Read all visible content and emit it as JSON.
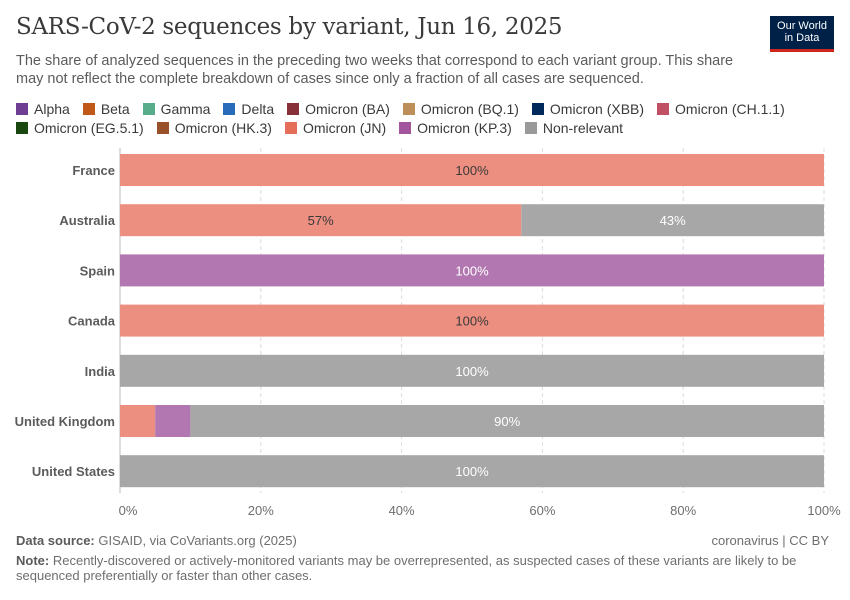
{
  "title": "SARS-CoV-2 sequences by variant, Jun 16, 2025",
  "subtitle": "The share of analyzed sequences in the preceding two weeks that correspond to each variant group. This share may not reflect the complete breakdown of cases since only a fraction of all cases are sequenced.",
  "logo": {
    "line1": "Our World",
    "line2": "in Data"
  },
  "footer": {
    "source_label": "Data source:",
    "source": "GISAID, via CoVariants.org (2025)",
    "note_label": "Note:",
    "note": "Recently-discovered or actively-monitored variants may be overrepresented, as suspected cases of these variants are likely to be sequenced preferentially or faster than other cases.",
    "license": "coronavirus | CC BY"
  },
  "chart_data": {
    "type": "bar",
    "orientation": "horizontal",
    "stacked": true,
    "xlim": [
      0,
      100
    ],
    "x_ticks": [
      "0%",
      "20%",
      "40%",
      "60%",
      "80%",
      "100%"
    ],
    "legend": [
      {
        "name": "Alpha",
        "color": "#6d3e91"
      },
      {
        "name": "Beta",
        "color": "#c05917"
      },
      {
        "name": "Gamma",
        "color": "#58ac8c"
      },
      {
        "name": "Delta",
        "color": "#286bbb"
      },
      {
        "name": "Omicron (BA)",
        "color": "#883039"
      },
      {
        "name": "Omicron (BQ.1)",
        "color": "#bc8e5a"
      },
      {
        "name": "Omicron (XBB)",
        "color": "#00295b"
      },
      {
        "name": "Omicron (CH.1.1)",
        "color": "#c15065"
      },
      {
        "name": "Omicron (EG.5.1)",
        "color": "#18470f"
      },
      {
        "name": "Omicron (HK.3)",
        "color": "#9a5129"
      },
      {
        "name": "Omicron (JN)",
        "color": "#e56e5a"
      },
      {
        "name": "Omicron (KP.3)",
        "color": "#a2559c"
      },
      {
        "name": "Non-relevant",
        "color": "#999999"
      }
    ],
    "segment_colors": {
      "Omicron (JN)": "#ec8f80",
      "Omicron (KP.3)": "#b277b0",
      "Non-relevant": "#a7a7a7"
    },
    "categories": [
      "France",
      "Australia",
      "Spain",
      "Canada",
      "India",
      "United Kingdom",
      "United States"
    ],
    "rows": [
      {
        "country": "France",
        "segments": [
          {
            "series": "Omicron (JN)",
            "value": 100,
            "label": "100%",
            "label_color": "#3a3a3a"
          }
        ]
      },
      {
        "country": "Australia",
        "segments": [
          {
            "series": "Omicron (JN)",
            "value": 57,
            "label": "57%",
            "label_color": "#3a3a3a"
          },
          {
            "series": "Non-relevant",
            "value": 43,
            "label": "43%",
            "label_color": "#ffffff"
          }
        ]
      },
      {
        "country": "Spain",
        "segments": [
          {
            "series": "Omicron (KP.3)",
            "value": 100,
            "label": "100%",
            "label_color": "#ffffff"
          }
        ]
      },
      {
        "country": "Canada",
        "segments": [
          {
            "series": "Omicron (JN)",
            "value": 100,
            "label": "100%",
            "label_color": "#3a3a3a"
          }
        ]
      },
      {
        "country": "India",
        "segments": [
          {
            "series": "Non-relevant",
            "value": 100,
            "label": "100%",
            "label_color": "#ffffff"
          }
        ]
      },
      {
        "country": "United Kingdom",
        "segments": [
          {
            "series": "Omicron (JN)",
            "value": 5,
            "label": "",
            "label_color": "#3a3a3a"
          },
          {
            "series": "Omicron (KP.3)",
            "value": 5,
            "label": "",
            "label_color": "#ffffff"
          },
          {
            "series": "Non-relevant",
            "value": 90,
            "label": "90%",
            "label_color": "#ffffff"
          }
        ]
      },
      {
        "country": "United States",
        "segments": [
          {
            "series": "Non-relevant",
            "value": 100,
            "label": "100%",
            "label_color": "#ffffff"
          }
        ]
      }
    ]
  }
}
